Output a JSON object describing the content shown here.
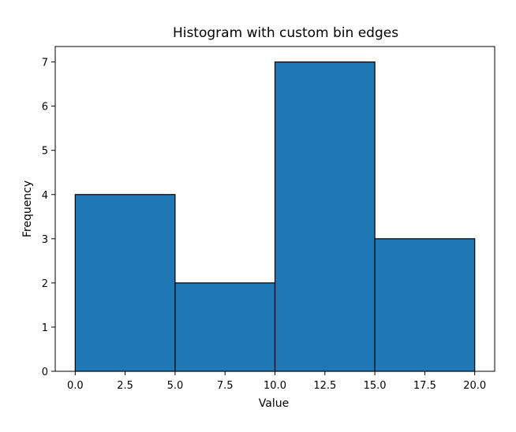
{
  "chart_data": {
    "type": "bar",
    "title": "Histogram with custom bin edges",
    "xlabel": "Value",
    "ylabel": "Frequency",
    "bin_edges": [
      0,
      5,
      10,
      15,
      20
    ],
    "values": [
      4,
      2,
      7,
      3
    ],
    "xlim": [
      -1,
      21
    ],
    "ylim": [
      0,
      7.35
    ],
    "xticks": [
      0,
      2.5,
      5,
      7.5,
      10,
      12.5,
      15,
      17.5,
      20
    ],
    "xtick_labels": [
      "0.0",
      "2.5",
      "5.0",
      "7.5",
      "10.0",
      "12.5",
      "15.0",
      "17.5",
      "20.0"
    ],
    "yticks": [
      0,
      1,
      2,
      3,
      4,
      5,
      6,
      7
    ],
    "ytick_labels": [
      "0",
      "1",
      "2",
      "3",
      "4",
      "5",
      "6",
      "7"
    ],
    "grid": false,
    "colors": {
      "bar_fill": "#1f77b4",
      "bar_edge": "#000000",
      "axis": "#000000"
    }
  }
}
